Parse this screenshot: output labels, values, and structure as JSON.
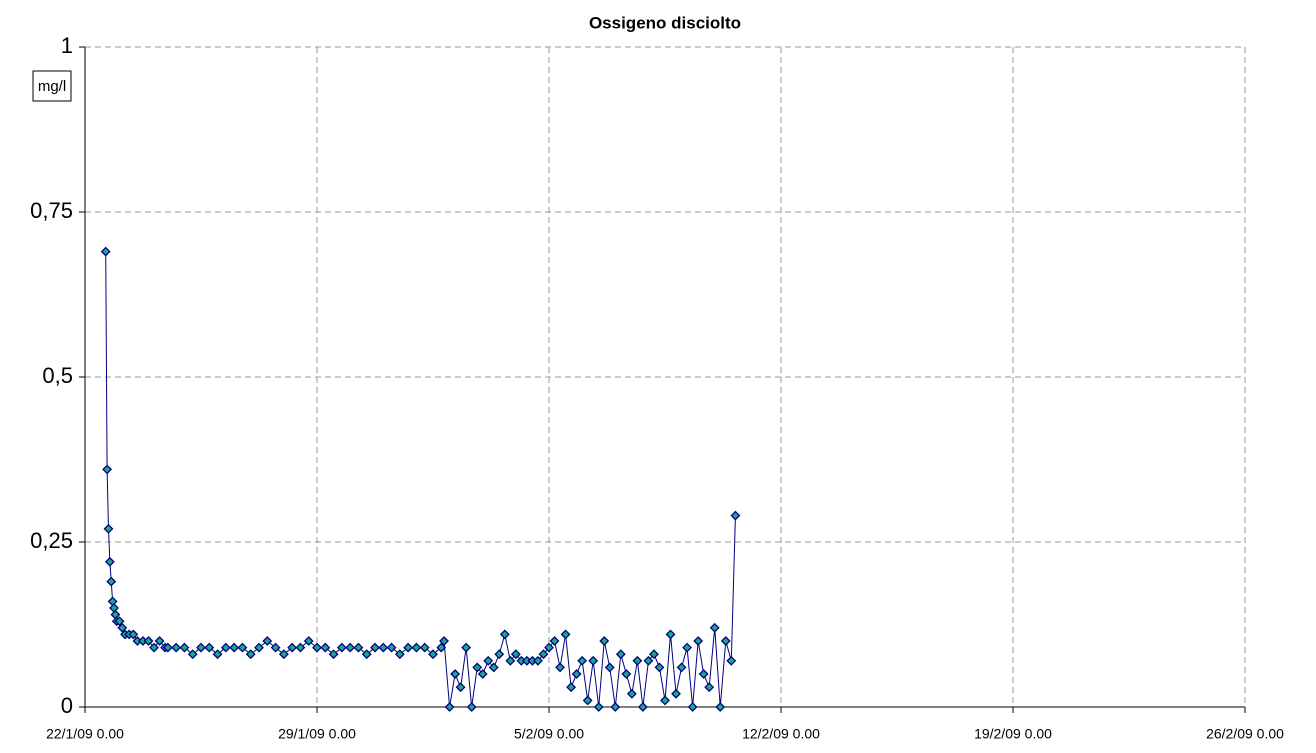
{
  "chart_data": {
    "type": "line",
    "title": "Ossigeno disciolto",
    "y_label": "mg/l",
    "color": "#000080",
    "marker_color": "#1aa88a",
    "grid": true,
    "xlim": [
      "2009-01-22T00:00",
      "2009-02-26T00:00"
    ],
    "xticks": [
      {
        "value": "2009-01-22T00:00",
        "label": "22/1/09 0.00"
      },
      {
        "value": "2009-01-29T00:00",
        "label": "29/1/09 0.00"
      },
      {
        "value": "2009-02-05T00:00",
        "label": "5/2/09 0.00"
      },
      {
        "value": "2009-02-12T00:00",
        "label": "12/2/09 0.00"
      },
      {
        "value": "2009-02-19T00:00",
        "label": "19/2/09 0.00"
      },
      {
        "value": "2009-02-26T00:00",
        "label": "26/2/09 0.00"
      }
    ],
    "ylim": [
      0,
      1
    ],
    "yticks": [
      0,
      {
        "value": 0.25,
        "label": "0,25"
      },
      {
        "value": 0.5,
        "label": "0,5"
      },
      {
        "value": 0.75,
        "label": "0,75"
      },
      1
    ],
    "x": [
      "2009-01-22T15:00",
      "2009-01-22T16:00",
      "2009-01-22T17:00",
      "2009-01-22T18:00",
      "2009-01-22T19:00",
      "2009-01-22T20:00",
      "2009-01-22T21:00",
      "2009-01-22T22:00",
      "2009-01-22T23:00",
      "2009-01-23T01:00",
      "2009-01-23T03:00",
      "2009-01-23T05:00",
      "2009-01-23T08:00",
      "2009-01-23T11:00",
      "2009-01-23T14:00",
      "2009-01-23T18:00",
      "2009-01-23T22:00",
      "2009-01-24T02:00",
      "2009-01-24T06:00",
      "2009-01-24T10:00",
      "2009-01-24T12:00",
      "2009-01-24T18:00",
      "2009-01-25T00:00",
      "2009-01-25T06:00",
      "2009-01-25T12:00",
      "2009-01-25T18:00",
      "2009-01-26T00:00",
      "2009-01-26T06:00",
      "2009-01-26T12:00",
      "2009-01-26T18:00",
      "2009-01-27T00:00",
      "2009-01-27T06:00",
      "2009-01-27T12:00",
      "2009-01-27T18:00",
      "2009-01-28T00:00",
      "2009-01-28T06:00",
      "2009-01-28T12:00",
      "2009-01-28T18:00",
      "2009-01-29T00:00",
      "2009-01-29T06:00",
      "2009-01-29T12:00",
      "2009-01-29T18:00",
      "2009-01-30T00:00",
      "2009-01-30T06:00",
      "2009-01-30T12:00",
      "2009-01-30T18:00",
      "2009-01-31T00:00",
      "2009-01-31T06:00",
      "2009-01-31T12:00",
      "2009-01-31T18:00",
      "2009-02-01T00:00",
      "2009-02-01T06:00",
      "2009-02-01T12:00",
      "2009-02-01T18:00",
      "2009-02-01T20:00",
      "2009-02-02T00:00",
      "2009-02-02T04:00",
      "2009-02-02T08:00",
      "2009-02-02T12:00",
      "2009-02-02T16:00",
      "2009-02-02T20:00",
      "2009-02-03T00:00",
      "2009-02-03T04:00",
      "2009-02-03T08:00",
      "2009-02-03T12:00",
      "2009-02-03T16:00",
      "2009-02-03T20:00",
      "2009-02-04T00:00",
      "2009-02-04T04:00",
      "2009-02-04T08:00",
      "2009-02-04T12:00",
      "2009-02-04T16:00",
      "2009-02-04T20:00",
      "2009-02-05T00:00",
      "2009-02-05T04:00",
      "2009-02-05T08:00",
      "2009-02-05T12:00",
      "2009-02-05T16:00",
      "2009-02-05T20:00",
      "2009-02-06T00:00",
      "2009-02-06T04:00",
      "2009-02-06T08:00",
      "2009-02-06T12:00",
      "2009-02-06T16:00",
      "2009-02-06T20:00",
      "2009-02-07T00:00",
      "2009-02-07T04:00",
      "2009-02-07T08:00",
      "2009-02-07T12:00",
      "2009-02-07T16:00",
      "2009-02-07T20:00",
      "2009-02-08T00:00",
      "2009-02-08T04:00",
      "2009-02-08T08:00",
      "2009-02-08T12:00",
      "2009-02-08T16:00",
      "2009-02-08T20:00",
      "2009-02-09T00:00",
      "2009-02-09T04:00",
      "2009-02-09T08:00",
      "2009-02-09T12:00",
      "2009-02-09T16:00",
      "2009-02-09T20:00",
      "2009-02-10T00:00",
      "2009-02-10T04:00",
      "2009-02-10T08:00",
      "2009-02-10T12:00",
      "2009-02-10T15:00"
    ],
    "values": [
      0.69,
      0.36,
      0.27,
      0.22,
      0.19,
      0.16,
      0.15,
      0.14,
      0.13,
      0.13,
      0.12,
      0.11,
      0.11,
      0.11,
      0.1,
      0.1,
      0.1,
      0.09,
      0.1,
      0.09,
      0.09,
      0.09,
      0.09,
      0.08,
      0.09,
      0.09,
      0.08,
      0.09,
      0.09,
      0.09,
      0.08,
      0.09,
      0.1,
      0.09,
      0.08,
      0.09,
      0.09,
      0.1,
      0.09,
      0.09,
      0.08,
      0.09,
      0.09,
      0.09,
      0.08,
      0.09,
      0.09,
      0.09,
      0.08,
      0.09,
      0.09,
      0.09,
      0.08,
      0.09,
      0.1,
      0,
      0.05,
      0.03,
      0.09,
      0,
      0.06,
      0.05,
      0.07,
      0.06,
      0.08,
      0.11,
      0.07,
      0.08,
      0.07,
      0.07,
      0.07,
      0.07,
      0.08,
      0.09,
      0.1,
      0.06,
      0.11,
      0.03,
      0.05,
      0.07,
      0.01,
      0.07,
      0,
      0.1,
      0.06,
      0,
      0.08,
      0.05,
      0.02,
      0.07,
      0,
      0.07,
      0.08,
      0.06,
      0.01,
      0.11,
      0.02,
      0.06,
      0.09,
      0,
      0.1,
      0.05,
      0.03,
      0.12,
      0,
      0.1,
      0.07,
      0.29
    ]
  }
}
